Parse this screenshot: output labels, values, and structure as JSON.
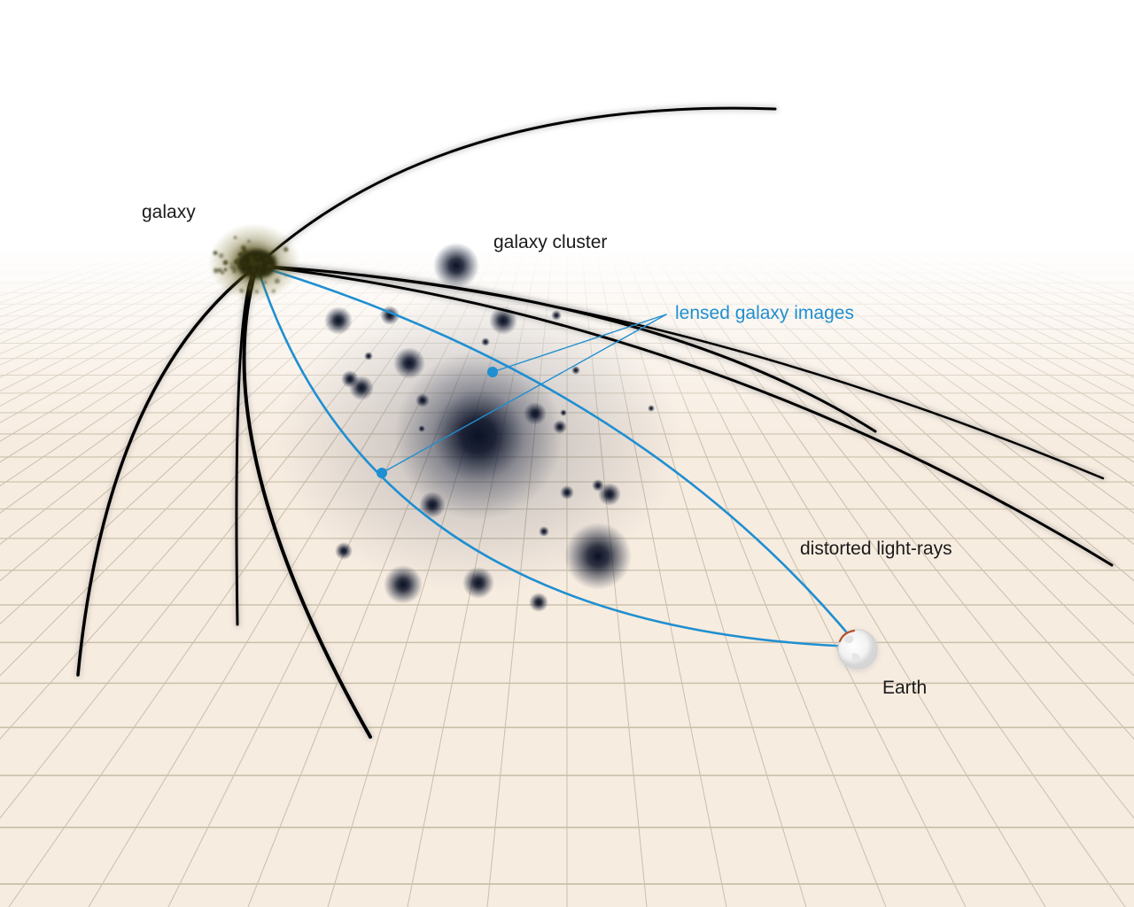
{
  "labels": {
    "galaxy": "galaxy",
    "galaxy_cluster": "galaxy cluster",
    "lensed_images": "lensed galaxy images",
    "distorted_rays": "distorted light-rays",
    "earth": "Earth"
  },
  "colors": {
    "grid_fill": "#f7ece0",
    "grid_line": "#c9bfa9",
    "ray_black": "#000000",
    "ray_blue": "#1f8fd1",
    "cluster": "#0b1226",
    "galaxy_core": "#3a3a12"
  }
}
